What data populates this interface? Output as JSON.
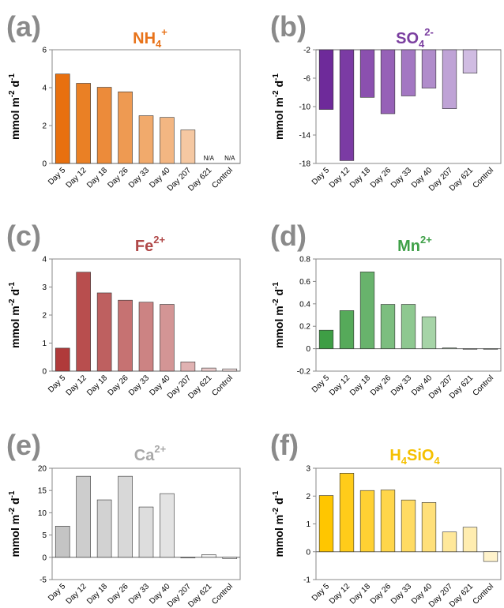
{
  "chart_data": [
    {
      "letter": "(a)",
      "title": {
        "base": "NH",
        "sub": "4",
        "sup": "+"
      },
      "title_color": "#E8731A",
      "type": "bar",
      "ylabel": "mmol m-2 d-1",
      "categories": [
        "Day 5",
        "Day 12",
        "Day 18",
        "Day 26",
        "Day 33",
        "Day 40",
        "Day 207",
        "Day 621",
        "Control"
      ],
      "values": [
        4.72,
        4.23,
        4.02,
        3.78,
        2.52,
        2.43,
        1.77,
        null,
        null
      ],
      "value_labels": [
        "",
        "",
        "",
        "",
        "",
        "",
        "",
        "N/A",
        "N/A"
      ],
      "colors": [
        "#E8700F",
        "#EA8025",
        "#EC8B3A",
        "#EE9A52",
        "#F1AA6C",
        "#F3B682",
        "#F5C8A2",
        "#ffffff",
        "#ffffff"
      ],
      "ylim": [
        0,
        6
      ],
      "yticks": [
        0,
        2,
        4,
        6
      ]
    },
    {
      "letter": "(b)",
      "title": {
        "base": "SO",
        "sub": "4",
        "sup": "2-"
      },
      "title_color": "#7B3FA0",
      "type": "bar",
      "ylabel": "mmol m-2 d-1",
      "categories": [
        "Day 5",
        "Day 12",
        "Day 18",
        "Day 26",
        "Day 33",
        "Day 40",
        "Day 207",
        "Day 621",
        "Control"
      ],
      "values": [
        -10.4,
        -17.6,
        -8.7,
        -11.0,
        -8.5,
        -7.4,
        -10.3,
        -5.3,
        null
      ],
      "value_labels": [
        "",
        "",
        "",
        "",
        "",
        "",
        "",
        "",
        ""
      ],
      "colors": [
        "#6E2A9A",
        "#7B3BA4",
        "#8B50AF",
        "#9661B7",
        "#A377C2",
        "#B08CCB",
        "#BFA3D6",
        "#D0BCE2",
        "#ffffff"
      ],
      "ylim": [
        -18,
        -2
      ],
      "yticks": [
        -2,
        -6,
        -10,
        -14,
        -18
      ],
      "top_line": true
    },
    {
      "letter": "(c)",
      "title": {
        "base": "Fe",
        "sub": "",
        "sup": "2+"
      },
      "title_color": "#B04848",
      "type": "bar",
      "ylabel": "mmol m-2 d-1",
      "categories": [
        "Day 5",
        "Day 12",
        "Day 18",
        "Day 26",
        "Day 33",
        "Day 40",
        "Day 207",
        "Day 621",
        "Control"
      ],
      "values": [
        0.82,
        3.53,
        2.79,
        2.53,
        2.46,
        2.38,
        0.33,
        0.11,
        0.08
      ],
      "value_labels": [
        "",
        "",
        "",
        "",
        "",
        "",
        "",
        "",
        ""
      ],
      "colors": [
        "#B03A3A",
        "#B84E4E",
        "#BE6060",
        "#C67272",
        "#CC8383",
        "#D39595",
        "#E0B2B2",
        "#EACACA",
        "#F1DDDD"
      ],
      "ylim": [
        0,
        4
      ],
      "yticks": [
        0,
        1,
        2,
        3,
        4
      ]
    },
    {
      "letter": "(d)",
      "title": {
        "base": "Mn",
        "sub": "",
        "sup": "2+"
      },
      "title_color": "#3FA048",
      "type": "bar",
      "ylabel": "mmol m-2 d-1",
      "categories": [
        "Day 5",
        "Day 12",
        "Day 18",
        "Day 26",
        "Day 33",
        "Day 40",
        "Day 207",
        "Day 621",
        "Control"
      ],
      "values": [
        0.165,
        0.34,
        0.685,
        0.395,
        0.395,
        0.285,
        0.008,
        0.0,
        -0.006
      ],
      "value_labels": [
        "",
        "",
        "",
        "",
        "",
        "",
        "",
        "",
        ""
      ],
      "colors": [
        "#3E9E45",
        "#56AA5A",
        "#68B36C",
        "#7CBE7F",
        "#8EC890",
        "#A6D4A7",
        "#CFE7CF",
        "#E2F0E2",
        "#EEF6EE"
      ],
      "ylim": [
        -0.2,
        0.8
      ],
      "yticks": [
        -0.2,
        0,
        0.2,
        0.4,
        0.6,
        0.8
      ]
    },
    {
      "letter": "(e)",
      "title": {
        "base": "Ca",
        "sub": "",
        "sup": "2+"
      },
      "title_color": "#A8A8A8",
      "type": "bar",
      "ylabel": "mmol m-2 d-1",
      "categories": [
        "Day 5",
        "Day 12",
        "Day 18",
        "Day 26",
        "Day 33",
        "Day 40",
        "Day 207",
        "Day 621",
        "Control"
      ],
      "values": [
        7.0,
        18.2,
        12.9,
        18.2,
        11.3,
        14.3,
        0.0,
        0.6,
        -0.3
      ],
      "value_labels": [
        "",
        "",
        "",
        "",
        "",
        "",
        "",
        "",
        ""
      ],
      "colors": [
        "#C4C4C4",
        "#CDCDCD",
        "#D2D2D2",
        "#D8D8D8",
        "#DDDDDD",
        "#E3E3E3",
        "#EBEBEB",
        "#F0F0F0",
        "#F5F5F5"
      ],
      "ylim": [
        -5,
        20
      ],
      "yticks": [
        -5,
        0,
        5,
        10,
        15,
        20
      ]
    },
    {
      "letter": "(f)",
      "title": {
        "base": "H",
        "sub": "4",
        "base2": "SiO",
        "sub2": "4"
      },
      "title_color": "#F5C000",
      "type": "bar",
      "ylabel": "mmol m-2 d-1",
      "categories": [
        "Day 5",
        "Day 12",
        "Day 18",
        "Day 26",
        "Day 33",
        "Day 40",
        "Day 207",
        "Day 621",
        "Control"
      ],
      "values": [
        2.02,
        2.82,
        2.2,
        2.22,
        1.86,
        1.77,
        0.71,
        0.88,
        -0.35
      ],
      "value_labels": [
        "",
        "",
        "",
        "",
        "",
        "",
        "",
        "",
        ""
      ],
      "colors": [
        "#FFC600",
        "#FFCC1A",
        "#FFD133",
        "#FFD64A",
        "#FFDB62",
        "#FFE07A",
        "#FFE89A",
        "#FFEDB0",
        "#FFF3CC"
      ],
      "ylim": [
        -1,
        3
      ],
      "yticks": [
        -1,
        0,
        1,
        2,
        3
      ]
    }
  ]
}
